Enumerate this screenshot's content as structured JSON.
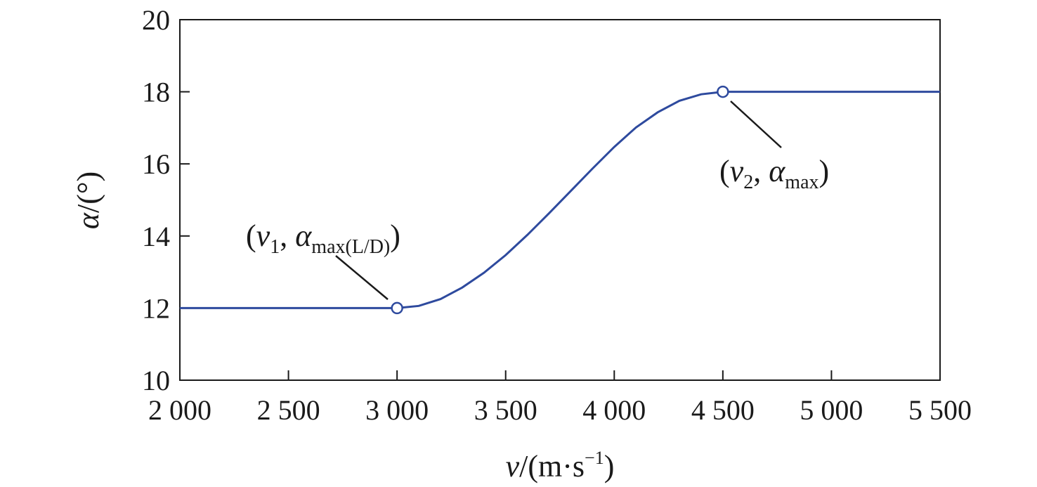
{
  "chart_data": {
    "type": "line",
    "xlim": [
      2000,
      5500
    ],
    "ylim": [
      10,
      20
    ],
    "x_ticks": [
      2000,
      2500,
      3000,
      3500,
      4000,
      4500,
      5000,
      5500
    ],
    "x_tick_labels": [
      "2 000",
      "2 500",
      "3 000",
      "3 500",
      "4 000",
      "4 500",
      "5 000",
      "5 500"
    ],
    "y_ticks": [
      10,
      12,
      14,
      16,
      18,
      20
    ],
    "y_tick_labels": [
      "10",
      "12",
      "14",
      "16",
      "18",
      "20"
    ],
    "xlabel": {
      "var": "v",
      "unit_open": "/(m·s",
      "unit_sup": "−1",
      "unit_close": ")"
    },
    "ylabel": {
      "var": "α",
      "unit": "/(°)"
    },
    "grid": false,
    "line_color": "#2e4a9e",
    "series": [
      {
        "x": [
          2000,
          2500,
          2900,
          3000,
          3100,
          3200,
          3300,
          3400,
          3500,
          3600,
          3700,
          3800,
          3900,
          4000,
          4100,
          4200,
          4300,
          4400,
          4500,
          5000,
          5500
        ],
        "y": [
          12,
          12,
          12,
          12,
          12.06,
          12.25,
          12.57,
          12.98,
          13.47,
          14.03,
          14.63,
          15.25,
          15.87,
          16.47,
          17.01,
          17.43,
          17.75,
          17.93,
          18,
          18,
          18
        ]
      }
    ],
    "markers": [
      {
        "x": 3000,
        "y": 12
      },
      {
        "x": 4500,
        "y": 18
      }
    ],
    "annotations": [
      {
        "open": "(",
        "var": "v",
        "var_sub": "1",
        "sep": ", ",
        "var2": "α",
        "var2_sub": "max(L/D)",
        "close": ")"
      },
      {
        "open": "(",
        "var": "v",
        "var_sub": "2",
        "sep": ", ",
        "var2": "α",
        "var2_sub": "max",
        "close": ")"
      }
    ]
  }
}
